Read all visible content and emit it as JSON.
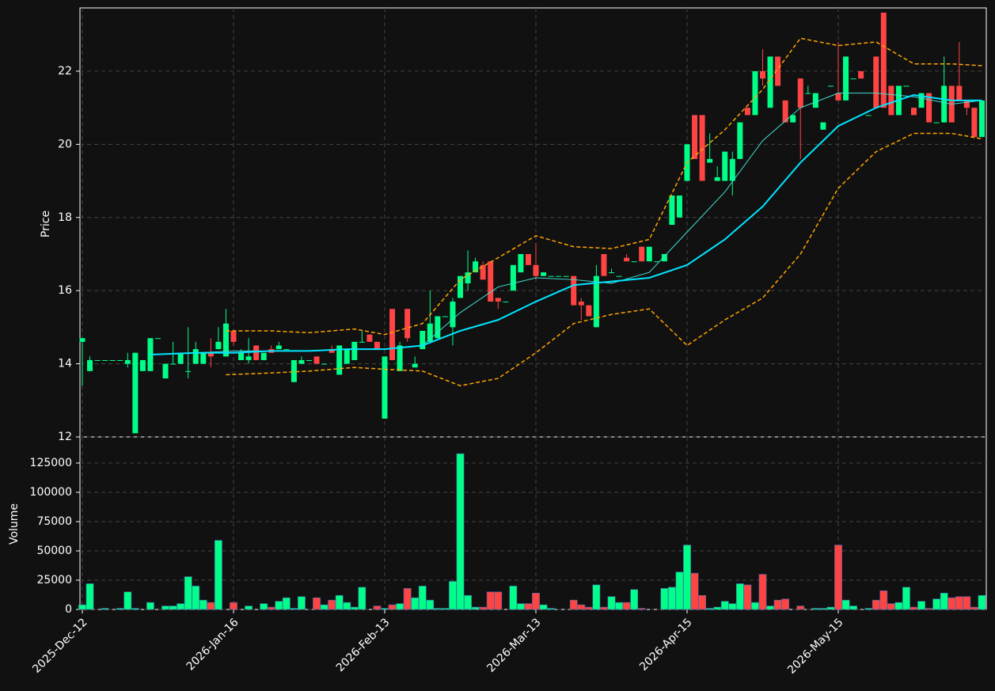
{
  "chart_data": {
    "type": "candlestick",
    "categories": [
      "2025-Dec-12",
      null,
      null,
      null,
      null,
      null,
      null,
      null,
      null,
      null,
      null,
      null,
      null,
      null,
      null,
      null,
      null,
      null,
      null,
      null,
      "2026-Jan-16",
      null,
      null,
      null,
      null,
      null,
      null,
      null,
      null,
      null,
      null,
      null,
      null,
      null,
      null,
      null,
      null,
      null,
      null,
      null,
      "2026-Feb-13",
      null,
      null,
      null,
      null,
      null,
      null,
      null,
      null,
      null,
      null,
      null,
      null,
      null,
      null,
      null,
      null,
      null,
      null,
      null,
      "2026-Mar-13",
      null,
      null,
      null,
      null,
      null,
      null,
      null,
      null,
      null,
      null,
      null,
      null,
      null,
      null,
      null,
      null,
      null,
      null,
      null,
      "2026-Apr-15",
      null,
      null,
      null,
      null,
      null,
      null,
      null,
      null,
      null,
      null,
      null,
      null,
      null,
      null,
      null,
      null,
      null,
      null,
      null,
      "2026-May-15",
      null,
      null,
      null,
      null,
      null,
      null,
      null,
      null,
      null,
      null,
      null,
      null,
      null,
      null,
      null,
      null,
      null,
      null,
      null
    ],
    "open": [
      14.6,
      13.8,
      14.1,
      14.1,
      14.1,
      14.1,
      14.0,
      12.1,
      13.8,
      13.8,
      14.7,
      13.6,
      14.0,
      14.0,
      13.8,
      14.0,
      14.0,
      14.3,
      14.4,
      14.2,
      14.9,
      14.1,
      14.1,
      14.5,
      14.1,
      14.4,
      14.4,
      14.4,
      13.5,
      14.0,
      14.1,
      14.2,
      14.0,
      14.4,
      13.7,
      14.0,
      14.1,
      14.6,
      14.8,
      14.6,
      12.5,
      15.5,
      13.8,
      15.5,
      13.9,
      14.4,
      14.6,
      14.7,
      15.3,
      15.0,
      15.8,
      16.2,
      16.5,
      16.7,
      16.8,
      15.8,
      15.7,
      16.0,
      16.5,
      17.0,
      16.7,
      16.4,
      16.4,
      16.4,
      16.4,
      16.4,
      15.7,
      15.6,
      15.0,
      17.0,
      16.5,
      16.4,
      16.9,
      16.8,
      17.2,
      16.8,
      16.8,
      16.8,
      17.8,
      18.0,
      19.0,
      20.8,
      20.8,
      19.5,
      19.0,
      19.0,
      19.0,
      19.6,
      21.0,
      20.8,
      22.0,
      21.0,
      22.4,
      21.2,
      20.6,
      21.8,
      21.4,
      21.0,
      20.4,
      21.6,
      21.4,
      21.2,
      21.8,
      22.0,
      20.8,
      22.4,
      23.6,
      21.6,
      20.8,
      21.6,
      21.0,
      21.0,
      21.4,
      20.6,
      20.6,
      21.6,
      21.6,
      21.2,
      21.0,
      20.2
    ],
    "high": [
      14.7,
      14.2,
      14.1,
      14.1,
      14.1,
      14.1,
      14.3,
      14.3,
      14.1,
      14.7,
      14.7,
      14.0,
      14.6,
      14.3,
      15.0,
      14.6,
      14.3,
      14.7,
      15.0,
      15.5,
      14.9,
      14.4,
      14.7,
      14.5,
      14.3,
      14.5,
      14.6,
      14.4,
      14.1,
      14.2,
      14.1,
      14.2,
      14.0,
      14.5,
      14.5,
      14.4,
      14.6,
      14.9,
      14.8,
      14.6,
      14.2,
      15.5,
      14.6,
      15.5,
      14.2,
      14.9,
      16.0,
      15.3,
      15.3,
      15.8,
      16.4,
      17.1,
      16.9,
      16.8,
      16.8,
      15.8,
      15.7,
      16.7,
      17.0,
      17.0,
      17.3,
      16.5,
      16.4,
      16.4,
      16.4,
      16.4,
      15.8,
      15.6,
      16.7,
      17.0,
      16.6,
      16.4,
      17.0,
      16.8,
      17.2,
      17.2,
      16.8,
      17.0,
      18.6,
      18.6,
      20.0,
      20.8,
      20.8,
      20.3,
      19.4,
      19.8,
      19.8,
      20.6,
      21.0,
      22.0,
      22.6,
      22.4,
      22.4,
      21.2,
      20.8,
      21.8,
      21.6,
      21.4,
      20.6,
      21.6,
      22.8,
      22.4,
      21.8,
      22.0,
      20.8,
      22.4,
      23.6,
      21.6,
      21.6,
      21.6,
      21.0,
      21.4,
      21.4,
      20.6,
      22.4,
      21.6,
      22.8,
      21.2,
      21.0,
      21.2
    ],
    "low": [
      13.4,
      13.8,
      14.1,
      14.1,
      14.1,
      14.1,
      13.9,
      12.1,
      13.8,
      13.8,
      14.7,
      13.6,
      14.0,
      14.0,
      13.6,
      14.0,
      14.0,
      13.9,
      14.4,
      14.2,
      14.5,
      14.1,
      14.0,
      14.1,
      14.1,
      14.3,
      14.4,
      14.4,
      13.5,
      14.0,
      14.1,
      14.0,
      14.0,
      14.3,
      13.7,
      14.0,
      14.1,
      14.6,
      14.6,
      14.4,
      12.5,
      14.1,
      13.8,
      14.6,
      13.9,
      14.4,
      14.6,
      14.7,
      15.3,
      14.5,
      15.8,
      16.0,
      16.5,
      16.3,
      15.7,
      15.5,
      15.7,
      16.0,
      16.5,
      16.7,
      16.3,
      16.4,
      16.4,
      16.4,
      16.4,
      15.6,
      15.2,
      15.3,
      15.0,
      16.4,
      16.5,
      16.4,
      16.8,
      16.8,
      16.8,
      16.8,
      16.8,
      16.8,
      17.8,
      18.0,
      19.0,
      19.6,
      19.0,
      19.5,
      19.0,
      19.0,
      18.6,
      19.6,
      20.8,
      20.8,
      21.6,
      21.0,
      21.6,
      20.6,
      20.6,
      19.6,
      21.4,
      21.0,
      20.4,
      21.6,
      21.2,
      21.2,
      21.8,
      21.8,
      20.8,
      21.0,
      21.0,
      20.8,
      20.8,
      21.6,
      20.8,
      21.0,
      20.6,
      20.6,
      20.6,
      20.6,
      21.2,
      20.8,
      20.2,
      20.2
    ],
    "close": [
      14.7,
      14.1,
      14.1,
      14.1,
      14.1,
      14.1,
      14.1,
      14.3,
      14.1,
      14.7,
      14.7,
      14.0,
      14.0,
      14.3,
      13.8,
      14.4,
      14.3,
      14.2,
      14.6,
      15.1,
      14.6,
      14.3,
      14.2,
      14.1,
      14.3,
      14.3,
      14.5,
      14.4,
      14.1,
      14.1,
      14.1,
      14.0,
      14.0,
      14.3,
      14.5,
      14.4,
      14.6,
      14.6,
      14.6,
      14.4,
      14.2,
      14.1,
      14.5,
      14.7,
      14.0,
      14.9,
      15.1,
      15.3,
      15.3,
      15.7,
      16.4,
      16.5,
      16.8,
      16.3,
      15.7,
      15.7,
      15.7,
      16.7,
      17.0,
      16.7,
      16.4,
      16.5,
      16.4,
      16.4,
      16.4,
      15.6,
      15.6,
      15.3,
      16.4,
      16.4,
      16.5,
      16.4,
      16.8,
      16.8,
      16.8,
      17.2,
      16.8,
      17.0,
      18.6,
      18.6,
      20.0,
      19.6,
      19.0,
      19.6,
      19.1,
      19.8,
      19.6,
      20.6,
      20.8,
      22.0,
      21.8,
      22.4,
      21.6,
      20.6,
      20.8,
      21.0,
      21.4,
      21.4,
      20.6,
      21.6,
      21.2,
      22.4,
      21.8,
      21.8,
      20.8,
      21.0,
      21.0,
      20.8,
      21.6,
      21.6,
      20.8,
      21.4,
      20.6,
      20.6,
      21.6,
      20.6,
      21.2,
      21.0,
      20.2,
      21.2
    ],
    "volume": [
      4000,
      22000,
      0,
      1000,
      0,
      1000,
      15000,
      1000,
      0,
      6000,
      0,
      3000,
      3000,
      5000,
      28000,
      20000,
      8000,
      6000,
      59000,
      0,
      6000,
      0,
      3000,
      0,
      5000,
      2000,
      7000,
      10000,
      1000,
      11000,
      0,
      10000,
      4000,
      8000,
      12000,
      6000,
      2000,
      19000,
      0,
      3000,
      1000,
      4000,
      5000,
      18000,
      10000,
      20000,
      8000,
      1000,
      1000,
      24000,
      133000,
      12000,
      2000,
      2000,
      15000,
      15000,
      0,
      20000,
      5000,
      5000,
      14000,
      4000,
      1000,
      0,
      0,
      8000,
      4000,
      2000,
      21000,
      2000,
      11000,
      6000,
      6000,
      17000,
      1000,
      0,
      0,
      18000,
      19000,
      32000,
      55000,
      31000,
      12000,
      1000,
      2000,
      7000,
      5000,
      22000,
      21000,
      6000,
      30000,
      3000,
      8000,
      9000,
      0,
      3000,
      0,
      1000,
      1000,
      2000,
      55000,
      8000,
      3000,
      0,
      1000,
      8000,
      16000,
      5000,
      6000,
      19000,
      2000,
      7000,
      1000,
      9000,
      14000,
      10000,
      11000,
      11000,
      2000,
      12000
    ],
    "up_color": "#00ff88",
    "down_color": "#ff4444",
    "lines": [
      {
        "color": "#40e0d0",
        "width": 1,
        "dash": false,
        "x": [
          9,
          15,
          20,
          25,
          30,
          35,
          40,
          45,
          50,
          55,
          60,
          65,
          70,
          75,
          80,
          85,
          90,
          95,
          100,
          105,
          110,
          115,
          119
        ],
        "values": [
          14.25,
          14.3,
          14.35,
          14.35,
          14.35,
          14.4,
          14.4,
          14.5,
          15.4,
          16.1,
          16.35,
          16.3,
          16.2,
          16.5,
          17.6,
          18.7,
          20.1,
          21.0,
          21.4,
          21.4,
          21.3,
          21.1,
          21.2
        ]
      },
      {
        "color": "#00e5ff",
        "width": 2,
        "dash": false,
        "x": [
          9,
          15,
          20,
          25,
          30,
          35,
          40,
          45,
          50,
          55,
          60,
          65,
          70,
          75,
          80,
          85,
          90,
          95,
          100,
          105,
          110,
          115,
          119
        ],
        "values": [
          14.25,
          14.3,
          14.3,
          14.35,
          14.35,
          14.4,
          14.4,
          14.5,
          14.9,
          15.2,
          15.7,
          16.15,
          16.25,
          16.35,
          16.7,
          17.4,
          18.3,
          19.5,
          20.5,
          21.0,
          21.35,
          21.2,
          21.2
        ]
      },
      {
        "color": "#ffa500",
        "width": 1.5,
        "dash": true,
        "x": [
          19,
          25,
          30,
          36,
          40,
          45,
          50,
          55,
          60,
          65,
          70,
          75,
          80,
          85,
          90,
          95,
          100,
          105,
          110,
          115,
          119
        ],
        "values": [
          14.9,
          14.9,
          14.85,
          14.95,
          14.8,
          15.1,
          16.3,
          16.9,
          17.5,
          17.2,
          17.15,
          17.4,
          19.5,
          20.4,
          21.5,
          22.9,
          22.7,
          22.8,
          22.2,
          22.2,
          22.15
        ]
      },
      {
        "color": "#ffa500",
        "width": 1.5,
        "dash": true,
        "x": [
          19,
          25,
          30,
          36,
          40,
          45,
          50,
          55,
          60,
          65,
          70,
          75,
          80,
          85,
          90,
          95,
          100,
          105,
          110,
          115,
          119
        ],
        "values": [
          13.7,
          13.75,
          13.8,
          13.9,
          13.85,
          13.8,
          13.4,
          13.6,
          14.3,
          15.1,
          15.35,
          15.5,
          14.5,
          15.2,
          15.8,
          17.0,
          18.8,
          19.8,
          20.3,
          20.3,
          20.15
        ]
      }
    ],
    "ylabel": "Price",
    "ylim": [
      12,
      23.73
    ],
    "yticks": [
      12,
      14,
      16,
      18,
      20,
      22
    ],
    "y2label": "Volume",
    "y2lim": [
      0,
      147300
    ],
    "y2ticks": [
      0,
      25000,
      50000,
      75000,
      100000,
      125000
    ],
    "grid": true
  }
}
